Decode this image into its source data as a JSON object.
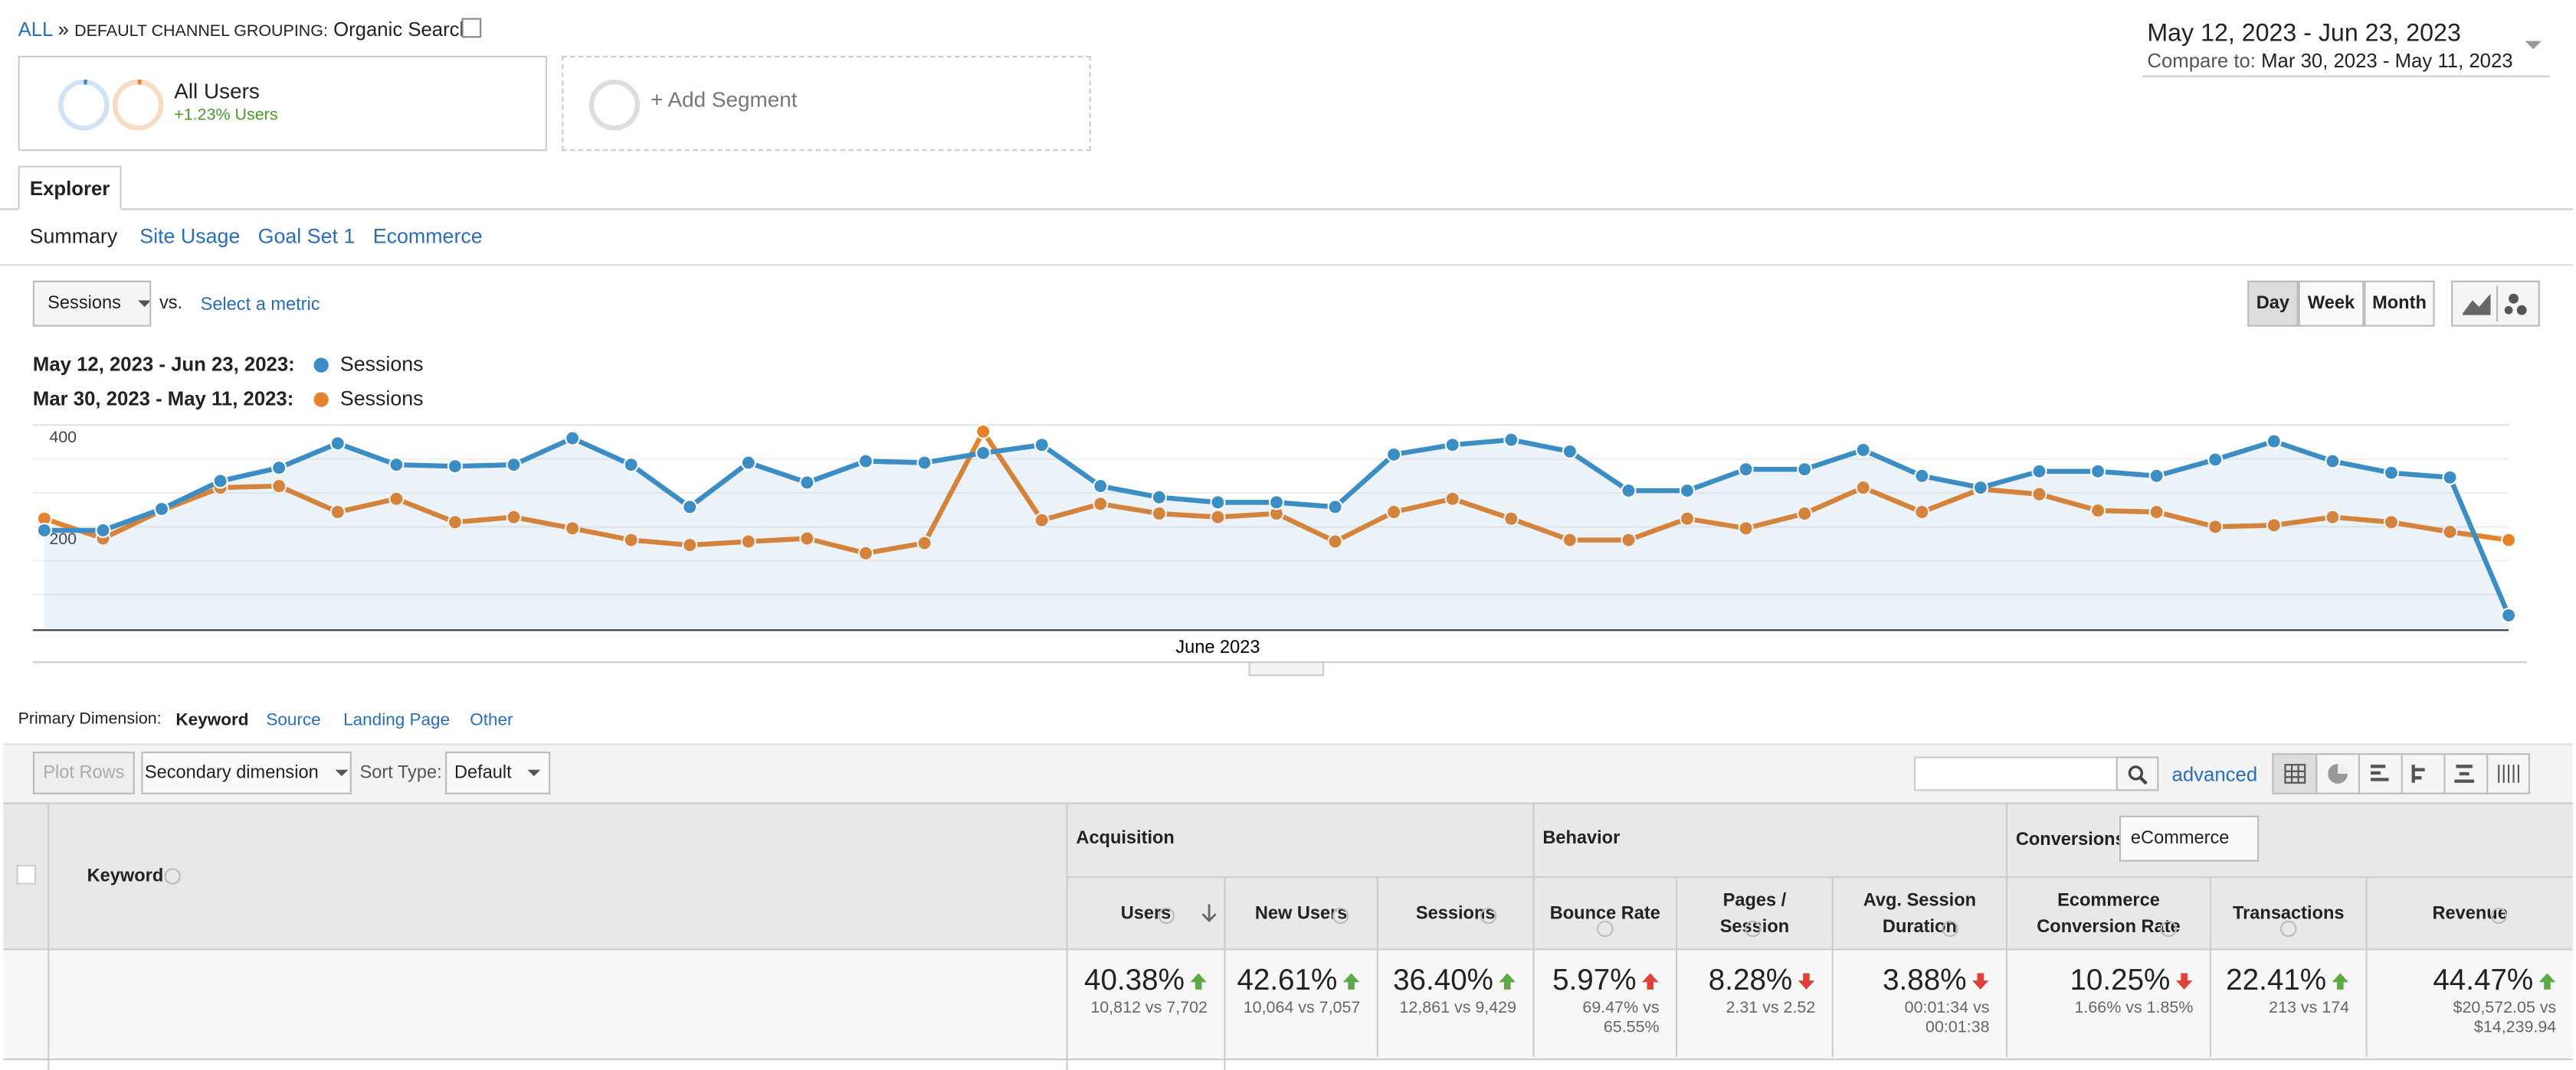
{
  "breadcrumb": {
    "all": "ALL",
    "separator": "»",
    "label": "DEFAULT CHANNEL GROUPING:",
    "value": "Organic Search"
  },
  "date_range": {
    "main": "May 12, 2023 - Jun 23, 2023",
    "compare_label": "Compare to:",
    "compare": "Mar 30, 2023 - May 11, 2023"
  },
  "segments": [
    {
      "name": "All Users",
      "change": "+1.23% Users"
    }
  ],
  "add_segment": "+ Add Segment",
  "tab": "Explorer",
  "subtabs": [
    "Summary",
    "Site Usage",
    "Goal Set 1",
    "Ecommerce"
  ],
  "metric_select": "Sessions",
  "vs": "vs.",
  "select_metric": "Select a metric",
  "granularity": [
    "Day",
    "Week",
    "Month"
  ],
  "chart_data": {
    "type": "line",
    "categories": [
      null,
      null,
      null,
      null,
      null,
      null,
      null,
      null,
      null,
      null,
      null,
      null,
      null,
      null,
      null,
      null,
      null,
      null,
      null,
      null,
      "June 2023",
      null,
      null,
      null,
      null,
      null,
      null,
      null,
      null,
      null,
      null,
      null,
      null,
      null,
      null,
      null,
      null,
      null,
      null,
      null,
      null,
      null,
      null
    ],
    "series": [
      {
        "label": "May 12, 2023 - Jun 23, 2023:",
        "name": "Sessions",
        "color": "#3b8dc4",
        "values": [
          193,
          193,
          235,
          290,
          316,
          364,
          322,
          319,
          322,
          374,
          322,
          239,
          326,
          287,
          329,
          326,
          345,
          361,
          280,
          258,
          248,
          248,
          239,
          342,
          361,
          371,
          348,
          271,
          271,
          313,
          313,
          351,
          300,
          277,
          309,
          309,
          300,
          332,
          368,
          329,
          306,
          297,
          26
        ]
      },
      {
        "label": "Mar 30, 2023 - May 11, 2023:",
        "name": "Sessions",
        "color": "#e5832d",
        "values": [
          216,
          177,
          232,
          277,
          280,
          229,
          255,
          209,
          219,
          197,
          174,
          164,
          171,
          177,
          148,
          168,
          387,
          213,
          245,
          226,
          219,
          226,
          171,
          229,
          255,
          216,
          174,
          174,
          216,
          197,
          226,
          277,
          229,
          274,
          264,
          232,
          229,
          200,
          203,
          219,
          209,
          190,
          174
        ]
      }
    ],
    "ylim": [
      0,
      400
    ],
    "yticks": [
      200,
      400
    ],
    "grid": true
  },
  "primary_dimension": {
    "label": "Primary Dimension:",
    "options": [
      "Keyword",
      "Source",
      "Landing Page",
      "Other"
    ]
  },
  "toolbar": {
    "plot_rows": "Plot Rows",
    "secondary": "Secondary dimension",
    "sort_label": "Sort Type:",
    "sort": "Default",
    "advanced": "advanced"
  },
  "table": {
    "dimension": "Keyword",
    "groups": [
      "Acquisition",
      "Behavior",
      "Conversions"
    ],
    "conversions_select": "eCommerce",
    "columns": [
      {
        "name": "Users",
        "value": "40.38%",
        "compare": "10,812 vs 7,702",
        "arrow": "up",
        "color": "#5fa847"
      },
      {
        "name": "New Users",
        "value": "42.61%",
        "compare": "10,064 vs 7,057",
        "arrow": "up",
        "color": "#5fa847"
      },
      {
        "name": "Sessions",
        "value": "36.40%",
        "compare": "12,861 vs 9,429",
        "arrow": "up",
        "color": "#5fa847"
      },
      {
        "name": "Bounce Rate",
        "value": "5.97%",
        "compare": "69.47% vs 65.55%",
        "arrow": "up",
        "color": "#e0413a"
      },
      {
        "name": "Pages / Session",
        "value": "8.28%",
        "compare": "2.31 vs 2.52",
        "arrow": "down",
        "color": "#e0413a"
      },
      {
        "name": "Avg. Session Duration",
        "value": "3.88%",
        "compare": "00:01:34 vs 00:01:38",
        "arrow": "down",
        "color": "#e0413a"
      },
      {
        "name": "Ecommerce Conversion Rate",
        "value": "10.25%",
        "compare": "1.66% vs 1.85%",
        "arrow": "down",
        "color": "#e0413a"
      },
      {
        "name": "Transactions",
        "value": "22.41%",
        "compare": "213 vs 174",
        "arrow": "up",
        "color": "#5fa847"
      },
      {
        "name": "Revenue",
        "value": "44.47%",
        "compare": "$20,572.05 vs $14,239.94",
        "arrow": "up",
        "color": "#5fa847"
      }
    ]
  }
}
